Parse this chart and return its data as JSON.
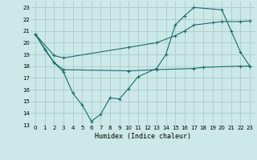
{
  "xlabel": "Humidex (Indice chaleur)",
  "bg_color": "#cce8e8",
  "grid_color": "#aacccc",
  "line_color": "#1a6b6b",
  "xlim": [
    -0.5,
    23.5
  ],
  "ylim": [
    13,
    23.5
  ],
  "yticks": [
    13,
    14,
    15,
    16,
    17,
    18,
    19,
    20,
    21,
    22,
    23
  ],
  "xticks": [
    0,
    1,
    2,
    3,
    4,
    5,
    6,
    7,
    8,
    9,
    10,
    11,
    12,
    13,
    14,
    15,
    16,
    17,
    18,
    19,
    20,
    21,
    22,
    23
  ],
  "line1_x": [
    0,
    1,
    2,
    3,
    4,
    5,
    6,
    7,
    8,
    9,
    10,
    11,
    13,
    14,
    15,
    16,
    17,
    20,
    21,
    22,
    23
  ],
  "line1_y": [
    20.7,
    19.4,
    18.3,
    17.5,
    15.7,
    14.7,
    13.3,
    13.9,
    15.3,
    15.2,
    16.1,
    17.1,
    17.8,
    19.0,
    21.5,
    22.3,
    23.0,
    22.8,
    21.0,
    19.2,
    18.0
  ],
  "line2_x": [
    0,
    2,
    3,
    10,
    13,
    17,
    18,
    22,
    23
  ],
  "line2_y": [
    20.7,
    18.3,
    17.7,
    17.6,
    17.7,
    17.8,
    17.9,
    18.0,
    18.0
  ],
  "line3_x": [
    0,
    2,
    3,
    10,
    13,
    15,
    16,
    17,
    19,
    20,
    22,
    23
  ],
  "line3_y": [
    20.7,
    18.9,
    18.7,
    19.6,
    20.0,
    20.6,
    21.0,
    21.5,
    21.7,
    21.8,
    21.8,
    21.85
  ]
}
